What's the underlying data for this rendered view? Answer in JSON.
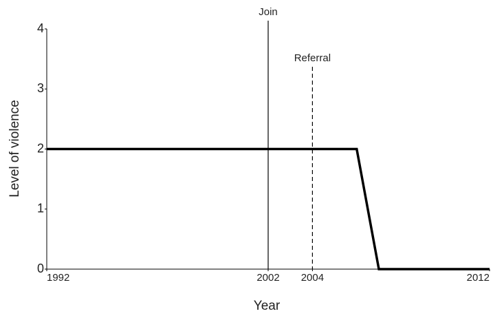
{
  "chart_data": {
    "type": "line",
    "x": [
      1992,
      2006,
      2007,
      2012
    ],
    "series": [
      {
        "color": "#000000",
        "values": [
          2,
          2,
          0,
          0
        ]
      }
    ],
    "xlim": [
      1992,
      2012
    ],
    "xticks": [
      1992,
      2002,
      2004,
      2012
    ],
    "ylim": [
      0,
      4
    ],
    "yticks": [
      0,
      1,
      2,
      3,
      4
    ],
    "x_label": "Year",
    "y_label": "Level of violence",
    "events": [
      {
        "x": 2002,
        "label": "Join",
        "style": "solid"
      },
      {
        "x": 2004,
        "label": "Referral",
        "style": "dashed"
      }
    ]
  }
}
